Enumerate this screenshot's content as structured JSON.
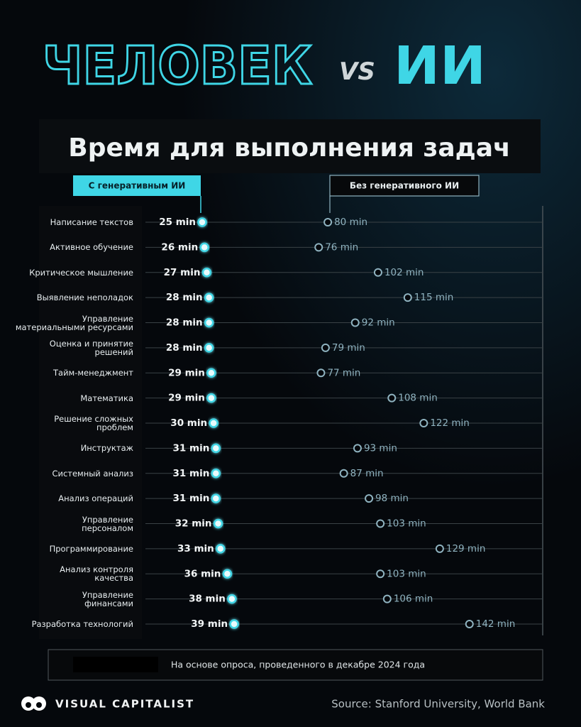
{
  "chart_data": {
    "type": "dumbbell",
    "title_left": "ЧЕЛОВЕК",
    "title_vs": "VS",
    "title_right": "ИИ",
    "subtitle": "Время для выполнения задач",
    "categories": [
      "Написание текстов",
      "Активное обучение",
      "Критическое мышление",
      "Выявление неполадок",
      "Управление\nматериальными ресурсами",
      "Оценка и принятие\nрешений",
      "Тайм-менеджмент",
      "Математика",
      "Решение сложных\nпроблем",
      "Инструктаж",
      "Системный анализ",
      "Анализ операций",
      "Управление\nперсоналом",
      "Программирование",
      "Анализ контроля\nкачества",
      "Управление\nфинансами",
      "Разработка технологий"
    ],
    "series": [
      {
        "name": "С генеративным ИИ",
        "color": "#3fd6e6",
        "values": [
          25,
          26,
          27,
          28,
          28,
          28,
          29,
          29,
          30,
          31,
          31,
          31,
          32,
          33,
          36,
          38,
          39
        ],
        "value_labels": [
          "25 min",
          "26 min",
          "27 min",
          "28 min",
          "28 min",
          "28 min",
          "29 min",
          "29 min",
          "30 min",
          "31 min",
          "31 min",
          "31 min",
          "32 min",
          "33 min",
          "36 min",
          "38 min",
          "39 min"
        ]
      },
      {
        "name": "Без генеративного ИИ",
        "color": "#8fb3c0",
        "values": [
          80,
          76,
          102,
          115,
          92,
          79,
          77,
          108,
          122,
          93,
          87,
          98,
          103,
          129,
          103,
          106,
          142
        ],
        "value_labels": [
          "80 min",
          "76 min",
          "102 min",
          "115 min",
          "92 min",
          "79 min",
          "77 min",
          "108 min",
          "122 min",
          "93 min",
          "87 min",
          "98 min",
          "103 min",
          "129 min",
          "103 min",
          "106 min",
          "142 min"
        ]
      }
    ],
    "note": "На основе опроса, проведенного в декабре 2024 года",
    "brand": "VISUAL CAPITALIST",
    "source": "Source:  Stanford University, World Bank"
  }
}
